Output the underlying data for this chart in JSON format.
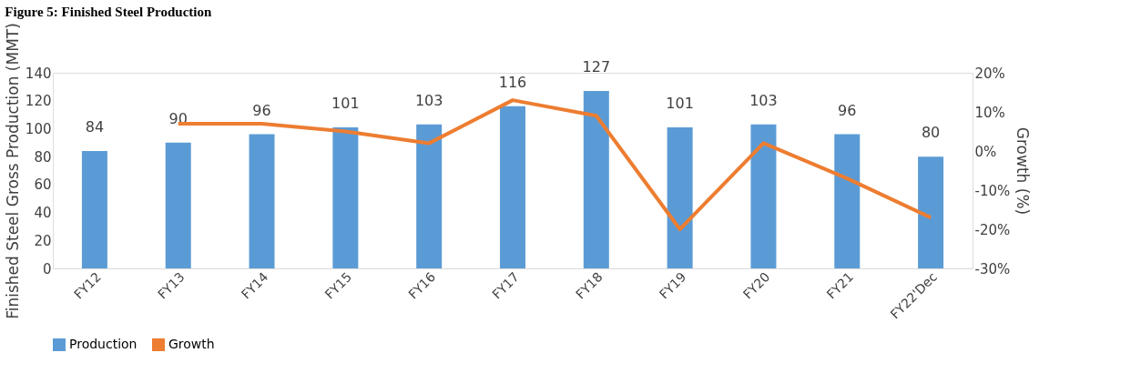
{
  "chart_data": {
    "type": "bar",
    "title": "Figure 5: Finished Steel Production",
    "ylabel": "Finished Steel Gross Production (MMT)",
    "y2label": "Growth (%)",
    "categories": [
      "FY12",
      "FY13",
      "FY14",
      "FY15",
      "FY16",
      "FY17",
      "FY18",
      "FY19",
      "FY20",
      "FY21",
      "FY22'Dec"
    ],
    "series": [
      {
        "name": "Production",
        "color": "#5b9bd5",
        "values": [
          84,
          90,
          96,
          101,
          103,
          116,
          127,
          101,
          103,
          96,
          80
        ]
      },
      {
        "name": "Growth",
        "type": "line",
        "axis": "y2",
        "color": "#ed7d31",
        "values": [
          null,
          7,
          7,
          5,
          2,
          13,
          9,
          -20,
          2,
          -7,
          -17
        ]
      }
    ],
    "value_labels": [
      "84",
      "90",
      "96",
      "101",
      "103",
      "116",
      "127",
      "101",
      "103",
      "96",
      "80"
    ],
    "ylim": [
      0,
      140
    ],
    "yticks": [
      0,
      20,
      40,
      60,
      80,
      100,
      120,
      140
    ],
    "y2lim": [
      -30,
      20
    ],
    "y2ticks": [
      {
        "value": -30,
        "label": "-30%"
      },
      {
        "value": -20,
        "label": "-20%"
      },
      {
        "value": -10,
        "label": "-10%"
      },
      {
        "value": 0,
        "label": "0%"
      },
      {
        "value": 10,
        "label": "10%"
      },
      {
        "value": 20,
        "label": "20%"
      }
    ],
    "grid": false,
    "legend": "bottom",
    "marker": "none",
    "line_style": "solid"
  }
}
